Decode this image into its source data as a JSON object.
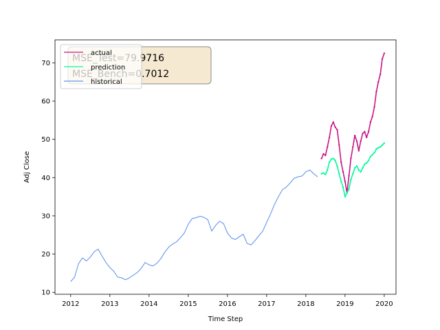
{
  "chart_data": {
    "type": "line",
    "title": "",
    "xlabel": "Time Step",
    "ylabel": "Adj Close",
    "xlim": [
      2011.6,
      2020.3
    ],
    "ylim": [
      9.5,
      76.0
    ],
    "x_ticks": [
      "2012",
      "2013",
      "2014",
      "2015",
      "2016",
      "2017",
      "2018",
      "2019",
      "2020"
    ],
    "y_ticks": [
      "10",
      "20",
      "30",
      "40",
      "50",
      "60",
      "70"
    ],
    "grid": false,
    "legend_position": "upper-left",
    "annotation": {
      "line1": "MSE_Test=79.9716",
      "line2": "MSE_Bench=0.7012"
    },
    "series": [
      {
        "name": "historical",
        "color": "#6495ED",
        "x": [
          2012.0,
          2012.1,
          2012.2,
          2012.3,
          2012.4,
          2012.5,
          2012.6,
          2012.7,
          2012.8,
          2012.9,
          2013.0,
          2013.1,
          2013.2,
          2013.3,
          2013.4,
          2013.5,
          2013.6,
          2013.7,
          2013.8,
          2013.9,
          2014.0,
          2014.1,
          2014.2,
          2014.3,
          2014.4,
          2014.5,
          2014.6,
          2014.7,
          2014.8,
          2014.9,
          2015.0,
          2015.1,
          2015.2,
          2015.3,
          2015.4,
          2015.5,
          2015.6,
          2015.7,
          2015.8,
          2015.9,
          2016.0,
          2016.1,
          2016.2,
          2016.3,
          2016.4,
          2016.5,
          2016.6,
          2016.7,
          2016.8,
          2016.9,
          2017.0,
          2017.1,
          2017.2,
          2017.3,
          2017.4,
          2017.5,
          2017.6,
          2017.7,
          2017.8,
          2017.9,
          2018.0,
          2018.1,
          2018.2,
          2018.3
        ],
        "values": [
          12.8,
          14.0,
          17.5,
          19.0,
          18.2,
          19.2,
          20.6,
          21.3,
          19.5,
          17.8,
          16.5,
          15.5,
          14.0,
          13.8,
          13.3,
          13.8,
          14.5,
          15.2,
          16.3,
          17.8,
          17.2,
          16.9,
          17.6,
          18.8,
          20.5,
          21.8,
          22.6,
          23.2,
          24.3,
          25.5,
          27.8,
          29.3,
          29.5,
          29.9,
          29.6,
          29.0,
          26.0,
          27.5,
          28.6,
          28.0,
          25.5,
          24.2,
          23.8,
          24.5,
          25.2,
          22.8,
          22.4,
          23.5,
          24.8,
          26.0,
          28.3,
          30.5,
          33.0,
          35.0,
          36.8,
          37.5,
          38.6,
          39.8,
          40.2,
          40.4,
          41.5,
          42.0,
          41.0,
          40.2
        ]
      },
      {
        "name": "actual",
        "color": "#C71585",
        "x": [
          2018.4,
          2018.45,
          2018.5,
          2018.55,
          2018.6,
          2018.65,
          2018.7,
          2018.75,
          2018.8,
          2018.85,
          2018.9,
          2018.95,
          2019.0,
          2019.05,
          2019.1,
          2019.15,
          2019.2,
          2019.25,
          2019.3,
          2019.35,
          2019.4,
          2019.45,
          2019.5,
          2019.55,
          2019.6,
          2019.65,
          2019.7,
          2019.75,
          2019.8,
          2019.85,
          2019.9,
          2019.95,
          2020.0
        ],
        "values": [
          45.0,
          46.2,
          45.8,
          48.0,
          50.5,
          53.5,
          54.5,
          53.2,
          52.5,
          48.5,
          44.0,
          41.5,
          39.0,
          36.0,
          40.5,
          45.0,
          48.0,
          51.0,
          49.5,
          47.0,
          49.5,
          51.5,
          52.0,
          50.5,
          52.0,
          54.5,
          56.0,
          58.5,
          62.5,
          65.0,
          67.0,
          71.0,
          72.5
        ]
      },
      {
        "name": "prediction",
        "color": "#00FA9A",
        "x": [
          2018.4,
          2018.45,
          2018.5,
          2018.55,
          2018.6,
          2018.65,
          2018.7,
          2018.75,
          2018.8,
          2018.85,
          2018.9,
          2018.95,
          2019.0,
          2019.05,
          2019.1,
          2019.15,
          2019.2,
          2019.25,
          2019.3,
          2019.35,
          2019.4,
          2019.45,
          2019.5,
          2019.55,
          2019.6,
          2019.65,
          2019.7,
          2019.75,
          2019.8,
          2019.85,
          2019.9,
          2019.95,
          2020.0
        ],
        "values": [
          41.0,
          41.2,
          40.8,
          42.0,
          44.0,
          44.8,
          45.0,
          44.5,
          43.0,
          41.0,
          39.0,
          37.5,
          35.0,
          36.0,
          37.0,
          39.5,
          41.0,
          42.5,
          43.0,
          42.0,
          41.5,
          42.5,
          43.5,
          43.8,
          44.5,
          45.5,
          46.0,
          46.5,
          47.5,
          47.8,
          48.0,
          48.5,
          49.0
        ]
      }
    ]
  }
}
